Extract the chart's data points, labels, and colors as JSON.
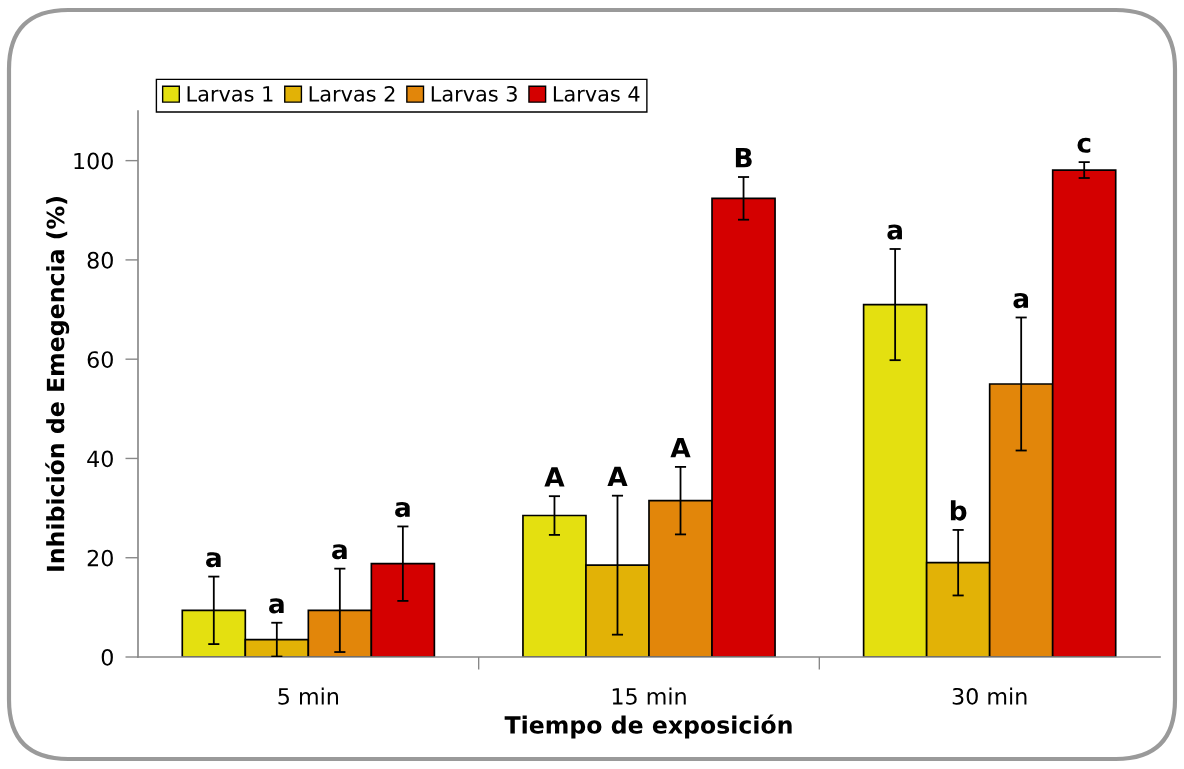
{
  "chart_data": {
    "type": "bar",
    "categories": [
      "5 min",
      "15 min",
      "30 min"
    ],
    "series": [
      {
        "name": "Larvas 1",
        "color": "#e4e010",
        "values": [
          9.4,
          28.5,
          71
        ],
        "errors": [
          6.8,
          3.9,
          11.2
        ]
      },
      {
        "name": "Larvas 2",
        "color": "#e2b206",
        "values": [
          3.5,
          18.5,
          19
        ],
        "errors": [
          3.4,
          14,
          6.6
        ]
      },
      {
        "name": "Larvas 3",
        "color": "#e2860a",
        "values": [
          9.4,
          31.5,
          55
        ],
        "errors": [
          8.4,
          6.8,
          13.4
        ]
      },
      {
        "name": "Larvas 4",
        "color": "#d40000",
        "values": [
          18.8,
          92.4,
          98.1
        ],
        "errors": [
          7.5,
          4.3,
          1.6
        ]
      }
    ],
    "xlabel": "Tiempo de exposición",
    "ylabel": "Inhibición de Emegencia (%)",
    "ylim": [
      0,
      110
    ],
    "yticks": [
      0,
      20,
      40,
      60,
      80,
      100
    ],
    "legend": "top left",
    "annotations": [
      "a",
      "a",
      "a",
      "a",
      "A",
      "A",
      "A",
      "B",
      "a",
      "b",
      "a",
      "c"
    ]
  }
}
